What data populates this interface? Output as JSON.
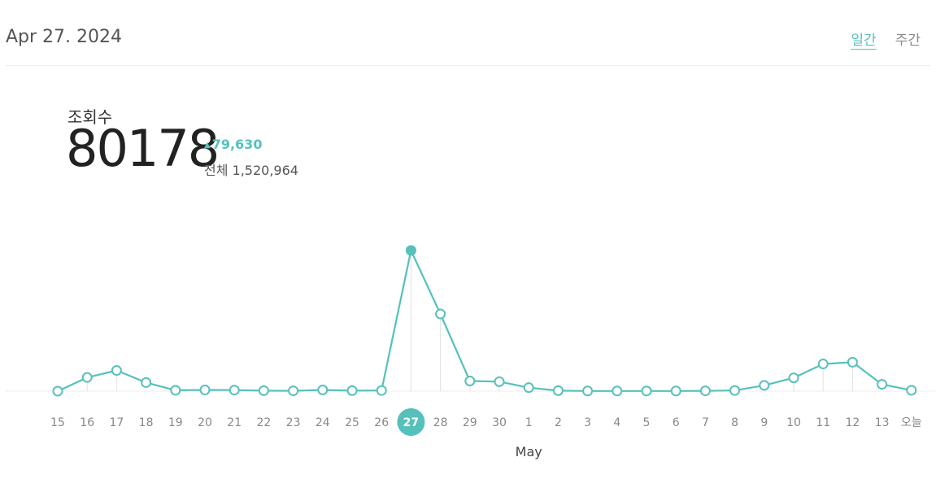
{
  "header": {
    "date": "Apr 27. 2024",
    "tabs": [
      {
        "label": "일간",
        "active": true
      },
      {
        "label": "주간",
        "active": false
      }
    ]
  },
  "stats": {
    "label": "조회수",
    "value": "80178",
    "change": "79,630",
    "total": "전체 1,520,964"
  },
  "colors": {
    "accent": "#56c1bb",
    "baseline": "#eeeeee",
    "guide": "#e2e2e2"
  },
  "chart_data": {
    "type": "line",
    "title": "",
    "xlabel": "May",
    "ylabel": "",
    "grid": false,
    "legend": "none",
    "categories": [
      "15",
      "16",
      "17",
      "18",
      "19",
      "20",
      "21",
      "22",
      "23",
      "24",
      "25",
      "26",
      "27",
      "28",
      "29",
      "30",
      "1",
      "2",
      "3",
      "4",
      "5",
      "6",
      "7",
      "8",
      "9",
      "10",
      "11",
      "12",
      "13",
      "오늘"
    ],
    "values": [
      0,
      7800,
      11800,
      4900,
      500,
      700,
      600,
      300,
      200,
      700,
      300,
      400,
      80178,
      44000,
      5800,
      5400,
      2000,
      300,
      100,
      100,
      100,
      100,
      200,
      400,
      3300,
      7600,
      15500,
      16500,
      3900,
      500
    ],
    "selected_index": 12,
    "ylim": [
      0,
      82000
    ]
  }
}
